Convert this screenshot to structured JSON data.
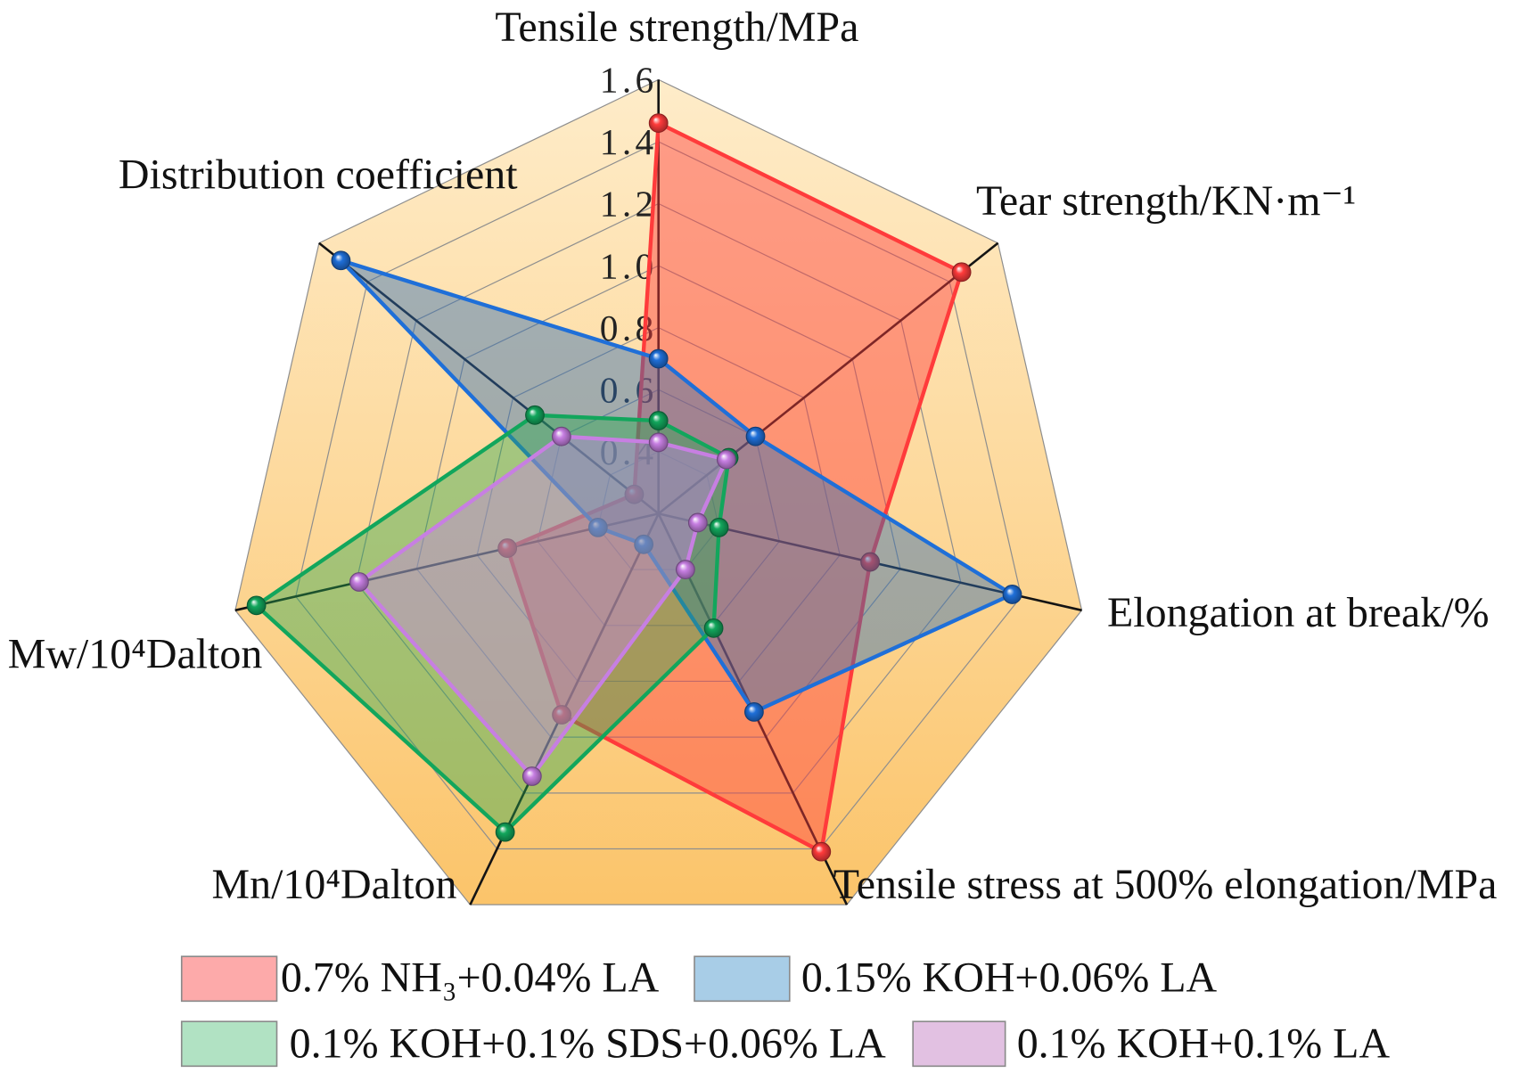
{
  "chart_data": {
    "type": "area",
    "categories": [
      "Tensile strength/MPa",
      "Tear strength/KN·m⁻¹",
      "Elongation at break/%",
      "Tensile stress at 500% elongation/MPa",
      "Mn/10⁴Dalton",
      "Mw/10⁴Dalton",
      "Distribution coefficient"
    ],
    "series": [
      {
        "name": "0.7% NH₃+0.04% LA",
        "color": "#ff3b3b",
        "fill": "#ff3c3c",
        "legend_color": "#fdaaaa",
        "values": [
          1.46,
          1.45,
          0.9,
          1.41,
          0.92,
          0.7,
          0.3
        ]
      },
      {
        "name": "0.15% KOH+0.06% LA",
        "color": "#1f6fd8",
        "fill": "#326eb4",
        "legend_color": "#a8cde7",
        "values": [
          0.7,
          0.6,
          1.37,
          0.91,
          0.31,
          0.4,
          1.51
        ]
      },
      {
        "name": "0.1% KOH+0.1% SDS+0.06% LA",
        "color": "#12a65c",
        "fill": "#28aa50",
        "legend_color": "#b1e2c3",
        "values": [
          0.5,
          0.49,
          0.4,
          0.61,
          1.34,
          1.53,
          0.71
        ]
      },
      {
        "name": "0.1% KOH+0.1% LA",
        "color": "#c77fe2",
        "fill": "#c882e6",
        "legend_color": "#e2c1e2",
        "values": [
          0.43,
          0.48,
          0.33,
          0.4,
          1.14,
          1.19,
          0.6
        ]
      }
    ],
    "rlim": [
      0.2,
      1.6
    ],
    "rticks": [
      0.4,
      0.6,
      0.8,
      1.0,
      1.2,
      1.4,
      1.6
    ],
    "rtick_labels": [
      "0.4",
      "0.6",
      "0.8",
      "1.0",
      "1.2",
      "1.4",
      "1.6"
    ],
    "grid": true,
    "legend_position": "bottom",
    "background_gradient": [
      "#feecc9",
      "#fdd99c",
      "#fbc46a"
    ]
  }
}
